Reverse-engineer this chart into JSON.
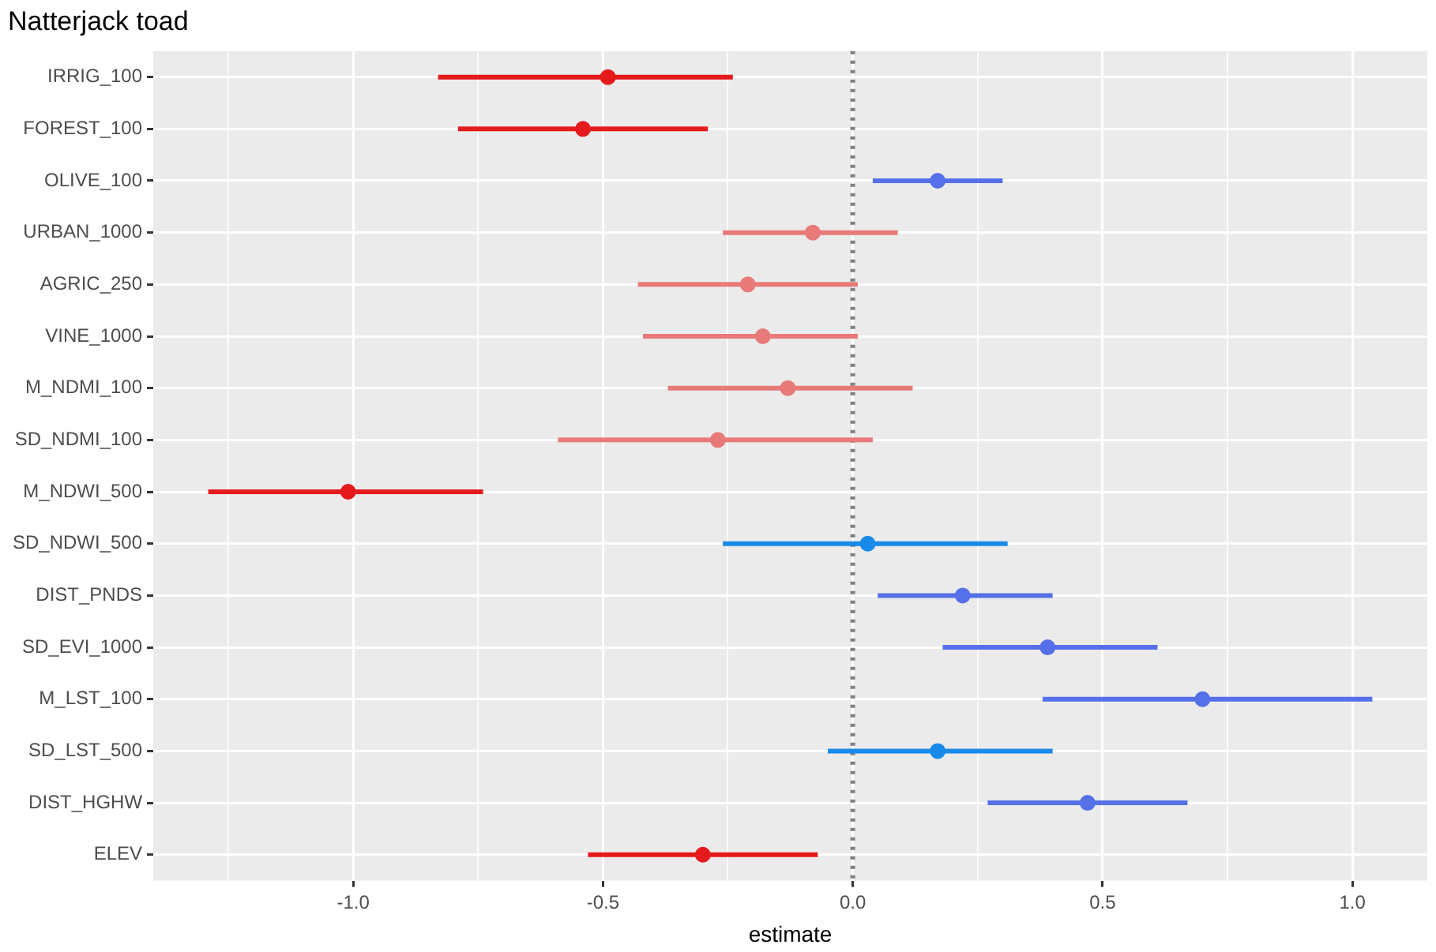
{
  "chart_data": {
    "type": "scatter",
    "orientation": "horizontal",
    "title": "Natterjack toad",
    "xlabel": "estimate",
    "categories": [
      "IRRIG_100",
      "FOREST_100",
      "OLIVE_100",
      "URBAN_1000",
      "AGRIC_250",
      "VINE_1000",
      "M_NDMI_100",
      "SD_NDMI_100",
      "M_NDWI_500",
      "SD_NDWI_500",
      "DIST_PNDS",
      "SD_EVI_1000",
      "M_LST_100",
      "SD_LST_500",
      "DIST_HGHW",
      "ELEV"
    ],
    "values": [
      -0.49,
      -0.54,
      0.17,
      -0.08,
      -0.21,
      -0.18,
      -0.13,
      -0.27,
      -1.01,
      0.03,
      0.22,
      0.39,
      0.7,
      0.17,
      0.47,
      -0.3
    ],
    "errors": [
      [
        -0.83,
        -0.24
      ],
      [
        -0.79,
        -0.29
      ],
      [
        0.04,
        0.3
      ],
      [
        -0.26,
        0.09
      ],
      [
        -0.43,
        0.01
      ],
      [
        -0.42,
        0.01
      ],
      [
        -0.37,
        0.12
      ],
      [
        -0.59,
        0.04
      ],
      [
        -1.29,
        -0.74
      ],
      [
        -0.26,
        0.31
      ],
      [
        0.05,
        0.4
      ],
      [
        0.18,
        0.61
      ],
      [
        0.38,
        1.04
      ],
      [
        -0.05,
        0.4
      ],
      [
        0.27,
        0.67
      ],
      [
        -0.53,
        -0.07
      ]
    ],
    "colors": [
      "#e41a1c",
      "#e41a1c",
      "#5570e8",
      "#e87a7a",
      "#e87a7a",
      "#e87a7a",
      "#e87a7a",
      "#e87a7a",
      "#e41a1c",
      "#1a8ae8",
      "#5570e8",
      "#5570e8",
      "#5570e8",
      "#1a8ae8",
      "#5570e8",
      "#e41a1c"
    ],
    "xlim": [
      -1.4,
      1.15
    ],
    "xticks": [
      {
        "value": -1.25,
        "label": null
      },
      {
        "value": -1.0,
        "label": "-1.0"
      },
      {
        "value": -0.75,
        "label": null
      },
      {
        "value": -0.5,
        "label": "-0.5"
      },
      {
        "value": -0.25,
        "label": null
      },
      {
        "value": 0,
        "label": "0.0"
      },
      {
        "value": 0.25,
        "label": null
      },
      {
        "value": 0.5,
        "label": "0.5"
      },
      {
        "value": 0.75,
        "label": null
      },
      {
        "value": 1.0,
        "label": "1.0"
      }
    ],
    "ref_lines": [
      {
        "axis": "x",
        "value": 0,
        "color": "#7f7f7f",
        "line_style": "dotted"
      }
    ],
    "grid": true,
    "legend": false,
    "marker": "circle"
  }
}
